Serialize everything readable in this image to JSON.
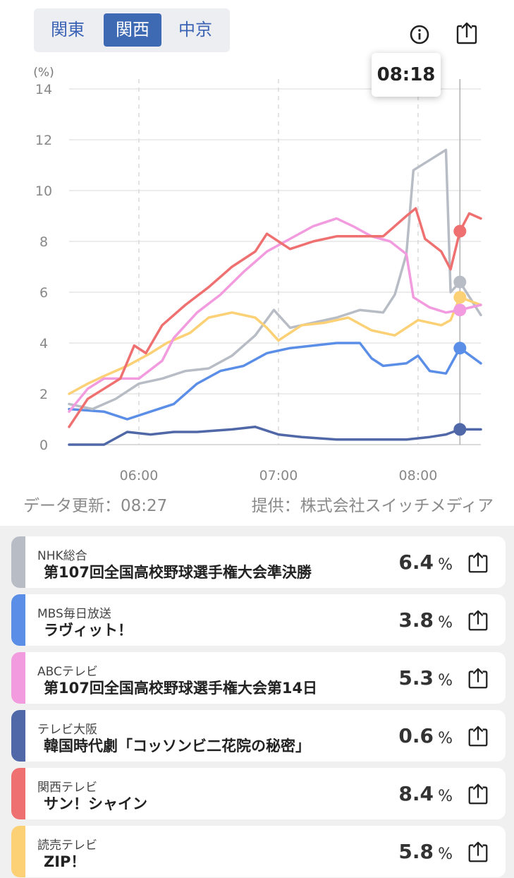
{
  "tabs": [
    {
      "label": "関東",
      "active": false
    },
    {
      "label": "関西",
      "active": true
    },
    {
      "label": "中京",
      "active": false
    }
  ],
  "icons": {
    "info": "info-icon",
    "share": "share-icon"
  },
  "tooltip": {
    "time": "08:18"
  },
  "footer": {
    "updated": "データ更新：08:27",
    "provider": "提供：株式会社スイッチメディア"
  },
  "chart_data": {
    "type": "line",
    "ylabel": "(%)",
    "ylim": [
      0,
      14
    ],
    "yticks": [
      "0",
      "2",
      "4",
      "6",
      "8",
      "10",
      "12",
      "14"
    ],
    "xlabels": [
      "06:00",
      "07:00",
      "08:00"
    ],
    "x_range": [
      "05:30",
      "08:27"
    ],
    "grid": true,
    "cursor_time": "08:18",
    "series": [
      {
        "name": "NHK総合",
        "color": "#b7bcc5",
        "points": [
          [
            "05:30",
            1.6
          ],
          [
            "05:40",
            1.4
          ],
          [
            "05:50",
            1.8
          ],
          [
            "06:00",
            2.4
          ],
          [
            "06:10",
            2.6
          ],
          [
            "06:20",
            2.9
          ],
          [
            "06:30",
            3.0
          ],
          [
            "06:40",
            3.5
          ],
          [
            "06:50",
            4.3
          ],
          [
            "06:58",
            5.3
          ],
          [
            "07:05",
            4.6
          ],
          [
            "07:15",
            4.8
          ],
          [
            "07:25",
            5.0
          ],
          [
            "07:35",
            5.3
          ],
          [
            "07:45",
            5.2
          ],
          [
            "07:50",
            5.9
          ],
          [
            "07:55",
            7.5
          ],
          [
            "07:58",
            10.8
          ],
          [
            "08:05",
            11.2
          ],
          [
            "08:12",
            11.6
          ],
          [
            "08:14",
            6.0
          ],
          [
            "08:18",
            6.4
          ],
          [
            "08:27",
            5.1
          ]
        ]
      },
      {
        "name": "MBS毎日放送",
        "color": "#5b8ee6",
        "points": [
          [
            "05:30",
            1.4
          ],
          [
            "05:45",
            1.3
          ],
          [
            "05:55",
            1.0
          ],
          [
            "06:05",
            1.3
          ],
          [
            "06:15",
            1.6
          ],
          [
            "06:25",
            2.4
          ],
          [
            "06:35",
            2.9
          ],
          [
            "06:45",
            3.1
          ],
          [
            "06:55",
            3.6
          ],
          [
            "07:05",
            3.8
          ],
          [
            "07:15",
            3.9
          ],
          [
            "07:25",
            4.0
          ],
          [
            "07:35",
            4.0
          ],
          [
            "07:40",
            3.4
          ],
          [
            "07:45",
            3.1
          ],
          [
            "07:55",
            3.2
          ],
          [
            "08:00",
            3.5
          ],
          [
            "08:05",
            2.9
          ],
          [
            "08:12",
            2.8
          ],
          [
            "08:18",
            3.8
          ],
          [
            "08:27",
            3.2
          ]
        ]
      },
      {
        "name": "ABCテレビ",
        "color": "#f29bde",
        "points": [
          [
            "05:30",
            1.3
          ],
          [
            "05:38",
            2.2
          ],
          [
            "05:45",
            2.6
          ],
          [
            "06:00",
            2.6
          ],
          [
            "06:10",
            3.3
          ],
          [
            "06:15",
            4.2
          ],
          [
            "06:25",
            5.2
          ],
          [
            "06:35",
            5.9
          ],
          [
            "06:45",
            6.8
          ],
          [
            "06:55",
            7.6
          ],
          [
            "07:05",
            8.1
          ],
          [
            "07:15",
            8.6
          ],
          [
            "07:25",
            8.9
          ],
          [
            "07:32",
            8.6
          ],
          [
            "07:40",
            8.2
          ],
          [
            "07:48",
            8.0
          ],
          [
            "07:55",
            7.5
          ],
          [
            "07:58",
            5.8
          ],
          [
            "08:05",
            5.4
          ],
          [
            "08:12",
            5.2
          ],
          [
            "08:18",
            5.3
          ],
          [
            "08:27",
            5.5
          ]
        ]
      },
      {
        "name": "テレビ大阪",
        "color": "#5068a8",
        "points": [
          [
            "05:30",
            0.0
          ],
          [
            "05:45",
            0.0
          ],
          [
            "05:55",
            0.5
          ],
          [
            "06:05",
            0.4
          ],
          [
            "06:15",
            0.5
          ],
          [
            "06:25",
            0.5
          ],
          [
            "06:40",
            0.6
          ],
          [
            "06:50",
            0.7
          ],
          [
            "07:00",
            0.4
          ],
          [
            "07:10",
            0.3
          ],
          [
            "07:25",
            0.2
          ],
          [
            "07:40",
            0.2
          ],
          [
            "07:55",
            0.2
          ],
          [
            "08:05",
            0.3
          ],
          [
            "08:12",
            0.4
          ],
          [
            "08:18",
            0.6
          ],
          [
            "08:27",
            0.6
          ]
        ]
      },
      {
        "name": "関西テレビ",
        "color": "#ef7070",
        "points": [
          [
            "05:30",
            0.7
          ],
          [
            "05:38",
            1.8
          ],
          [
            "05:45",
            2.2
          ],
          [
            "05:52",
            2.6
          ],
          [
            "05:58",
            3.9
          ],
          [
            "06:03",
            3.6
          ],
          [
            "06:10",
            4.7
          ],
          [
            "06:20",
            5.5
          ],
          [
            "06:30",
            6.2
          ],
          [
            "06:40",
            7.0
          ],
          [
            "06:50",
            7.6
          ],
          [
            "06:55",
            8.3
          ],
          [
            "07:05",
            7.7
          ],
          [
            "07:15",
            8.0
          ],
          [
            "07:25",
            8.2
          ],
          [
            "07:35",
            8.2
          ],
          [
            "07:45",
            8.2
          ],
          [
            "07:50",
            8.6
          ],
          [
            "07:55",
            9.0
          ],
          [
            "07:59",
            9.3
          ],
          [
            "08:03",
            8.1
          ],
          [
            "08:10",
            7.6
          ],
          [
            "08:14",
            6.9
          ],
          [
            "08:18",
            8.4
          ],
          [
            "08:22",
            9.1
          ],
          [
            "08:27",
            8.9
          ]
        ]
      },
      {
        "name": "読売テレビ",
        "color": "#fcd075",
        "points": [
          [
            "05:30",
            2.0
          ],
          [
            "05:38",
            2.4
          ],
          [
            "05:45",
            2.7
          ],
          [
            "05:55",
            3.1
          ],
          [
            "06:05",
            3.6
          ],
          [
            "06:12",
            4.0
          ],
          [
            "06:22",
            4.4
          ],
          [
            "06:30",
            5.0
          ],
          [
            "06:40",
            5.2
          ],
          [
            "06:50",
            5.0
          ],
          [
            "06:55",
            4.6
          ],
          [
            "07:00",
            4.1
          ],
          [
            "07:10",
            4.7
          ],
          [
            "07:20",
            4.8
          ],
          [
            "07:30",
            5.0
          ],
          [
            "07:40",
            4.5
          ],
          [
            "07:50",
            4.3
          ],
          [
            "08:00",
            4.9
          ],
          [
            "08:10",
            4.7
          ],
          [
            "08:14",
            4.9
          ],
          [
            "08:18",
            5.8
          ],
          [
            "08:27",
            5.5
          ]
        ]
      }
    ]
  },
  "channels": [
    {
      "name": "NHK総合",
      "program": "第107回全国高校野球選手権大会準決勝",
      "value": "6.4",
      "unit": "%",
      "color": "#b7bcc5"
    },
    {
      "name": "MBS毎日放送",
      "program": "ラヴィット！",
      "value": "3.8",
      "unit": "%",
      "color": "#5b8ee6"
    },
    {
      "name": "ABCテレビ",
      "program": "第107回全国高校野球選手権大会第14日",
      "value": "5.3",
      "unit": "%",
      "color": "#f29bde"
    },
    {
      "name": "テレビ大阪",
      "program": "韓国時代劇「コッソンビ二花院の秘密」",
      "value": "0.6",
      "unit": "%",
      "color": "#5068a8"
    },
    {
      "name": "関西テレビ",
      "program": "サン！シャイン",
      "value": "8.4",
      "unit": "%",
      "color": "#ef7070"
    },
    {
      "name": "読売テレビ",
      "program": "ZIP！",
      "value": "5.8",
      "unit": "%",
      "color": "#fcd075"
    }
  ]
}
